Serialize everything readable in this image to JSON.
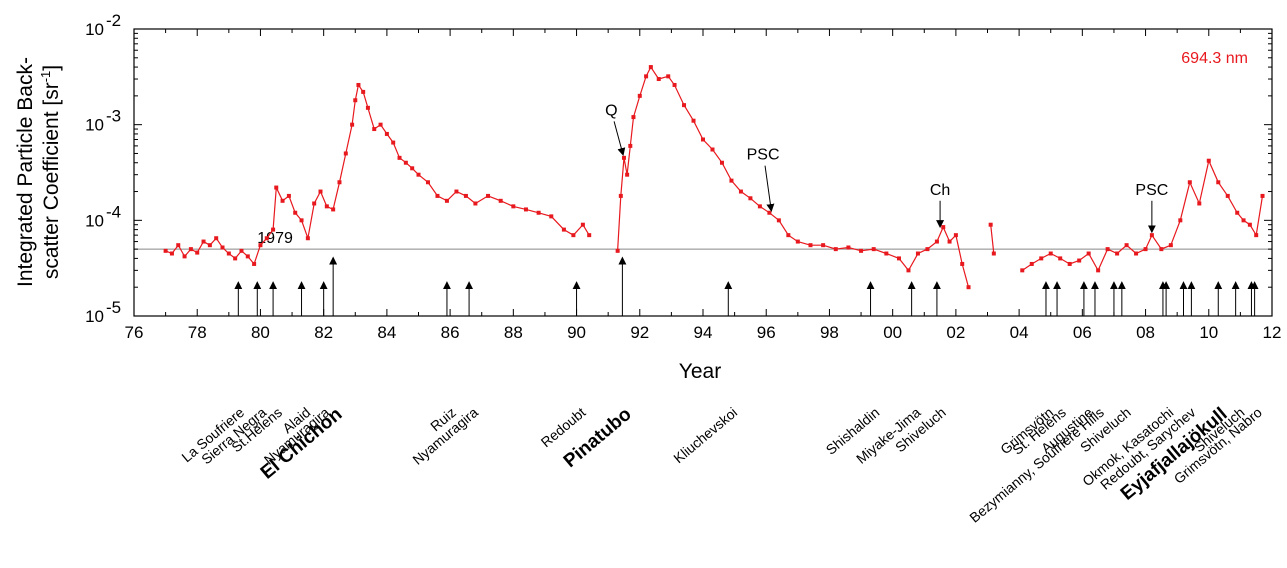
{
  "chart_data": {
    "type": "line",
    "ylabel_line1": "Integrated Particle Back-",
    "ylabel_line2": "scatter Coefficient [sr",
    "ylabel_sup": "-1",
    "ylabel_end": "]",
    "xlabel": "Year",
    "wavelength_label": "694.3 nm",
    "x_axis": {
      "min": 1976,
      "max": 2012,
      "ticks": [
        1976,
        1978,
        1980,
        1982,
        1984,
        1986,
        1988,
        1990,
        1992,
        1994,
        1996,
        1998,
        2000,
        2002,
        2004,
        2006,
        2008,
        2010,
        2012
      ],
      "tick_labels": [
        "76",
        "78",
        "80",
        "82",
        "84",
        "86",
        "88",
        "90",
        "92",
        "94",
        "96",
        "98",
        "00",
        "02",
        "04",
        "06",
        "08",
        "10",
        "12"
      ]
    },
    "y_axis": {
      "scale": "log",
      "min": 1e-05,
      "max": 0.01,
      "tick_base": "10",
      "tick_exponents": [
        "-5",
        "-4",
        "-3",
        "-2"
      ]
    },
    "reference_line": {
      "value": 5e-05,
      "label": "1979"
    },
    "colors": {
      "series": "#e8191e",
      "axis": "#000000",
      "wavelength": "#e8191e",
      "reference": "#888888"
    },
    "series": [
      {
        "points": [
          [
            1977.0,
            4.8e-05
          ],
          [
            1977.2,
            4.5e-05
          ],
          [
            1977.4,
            5.5e-05
          ],
          [
            1977.6,
            4.2e-05
          ],
          [
            1977.8,
            5e-05
          ],
          [
            1978.0,
            4.6e-05
          ],
          [
            1978.2,
            6e-05
          ],
          [
            1978.4,
            5.5e-05
          ],
          [
            1978.6,
            6.5e-05
          ],
          [
            1978.8,
            5.2e-05
          ],
          [
            1979.0,
            4.5e-05
          ],
          [
            1979.2,
            4e-05
          ],
          [
            1979.4,
            4.8e-05
          ],
          [
            1979.6,
            4.2e-05
          ],
          [
            1979.8,
            3.5e-05
          ],
          [
            1980.0,
            5.5e-05
          ],
          [
            1980.2,
            6.5e-05
          ],
          [
            1980.4,
            8e-05
          ],
          [
            1980.5,
            0.00022
          ],
          [
            1980.7,
            0.00016
          ],
          [
            1980.9,
            0.00018
          ],
          [
            1981.1,
            0.00012
          ],
          [
            1981.3,
            0.0001
          ],
          [
            1981.5,
            6.5e-05
          ],
          [
            1981.7,
            0.00015
          ],
          [
            1981.9,
            0.0002
          ],
          [
            1982.1,
            0.00014
          ],
          [
            1982.3,
            0.00013
          ],
          [
            1982.5,
            0.00025
          ],
          [
            1982.7,
            0.0005
          ],
          [
            1982.9,
            0.001
          ],
          [
            1983.0,
            0.0018
          ],
          [
            1983.1,
            0.0026
          ],
          [
            1983.25,
            0.0022
          ],
          [
            1983.4,
            0.0015
          ],
          [
            1983.6,
            0.0009
          ],
          [
            1983.8,
            0.001
          ],
          [
            1984.0,
            0.0008
          ],
          [
            1984.2,
            0.00065
          ],
          [
            1984.4,
            0.00045
          ],
          [
            1984.6,
            0.0004
          ],
          [
            1984.8,
            0.00035
          ],
          [
            1985.0,
            0.0003
          ],
          [
            1985.3,
            0.00025
          ],
          [
            1985.6,
            0.00018
          ],
          [
            1985.9,
            0.00016
          ],
          [
            1986.2,
            0.0002
          ],
          [
            1986.5,
            0.00018
          ],
          [
            1986.8,
            0.00015
          ],
          [
            1987.2,
            0.00018
          ],
          [
            1987.6,
            0.00016
          ],
          [
            1988.0,
            0.00014
          ],
          [
            1988.4,
            0.00013
          ],
          [
            1988.8,
            0.00012
          ],
          [
            1989.2,
            0.00011
          ],
          [
            1989.6,
            8e-05
          ],
          [
            1989.9,
            7e-05
          ],
          [
            1990.2,
            9e-05
          ],
          [
            1990.4,
            7e-05
          ],
          [
            1991.3,
            4.8e-05
          ],
          [
            1991.4,
            0.00018
          ],
          [
            1991.5,
            0.00045
          ],
          [
            1991.6,
            0.0003
          ],
          [
            1991.7,
            0.0006
          ],
          [
            1991.8,
            0.0012
          ],
          [
            1992.0,
            0.002
          ],
          [
            1992.2,
            0.0032
          ],
          [
            1992.35,
            0.004
          ],
          [
            1992.6,
            0.003
          ],
          [
            1992.9,
            0.0032
          ],
          [
            1993.1,
            0.0026
          ],
          [
            1993.4,
            0.0016
          ],
          [
            1993.7,
            0.0011
          ],
          [
            1994.0,
            0.0007
          ],
          [
            1994.3,
            0.00055
          ],
          [
            1994.6,
            0.0004
          ],
          [
            1994.9,
            0.00026
          ],
          [
            1995.2,
            0.0002
          ],
          [
            1995.5,
            0.00017
          ],
          [
            1995.8,
            0.00014
          ],
          [
            1996.1,
            0.00012
          ],
          [
            1996.4,
            0.0001
          ],
          [
            1996.7,
            7e-05
          ],
          [
            1997.0,
            6e-05
          ],
          [
            1997.4,
            5.5e-05
          ],
          [
            1997.8,
            5.5e-05
          ],
          [
            1998.2,
            5e-05
          ],
          [
            1998.6,
            5.2e-05
          ],
          [
            1999.0,
            4.8e-05
          ],
          [
            1999.4,
            5e-05
          ],
          [
            1999.8,
            4.5e-05
          ],
          [
            2000.2,
            4e-05
          ],
          [
            2000.5,
            3e-05
          ],
          [
            2000.8,
            4.5e-05
          ],
          [
            2001.1,
            5e-05
          ],
          [
            2001.4,
            6e-05
          ],
          [
            2001.6,
            8.5e-05
          ],
          [
            2001.8,
            6e-05
          ],
          [
            2002.0,
            7e-05
          ],
          [
            2002.2,
            3.5e-05
          ],
          [
            2002.4,
            2e-05
          ],
          [
            2003.1,
            9e-05
          ],
          [
            2003.2,
            4.5e-05
          ],
          [
            2004.1,
            3e-05
          ],
          [
            2004.4,
            3.5e-05
          ],
          [
            2004.7,
            4e-05
          ],
          [
            2005.0,
            4.5e-05
          ],
          [
            2005.3,
            4e-05
          ],
          [
            2005.6,
            3.5e-05
          ],
          [
            2005.9,
            3.8e-05
          ],
          [
            2006.2,
            4.5e-05
          ],
          [
            2006.5,
            3e-05
          ],
          [
            2006.8,
            5e-05
          ],
          [
            2007.1,
            4.5e-05
          ],
          [
            2007.4,
            5.5e-05
          ],
          [
            2007.7,
            4.5e-05
          ],
          [
            2008.0,
            5e-05
          ],
          [
            2008.2,
            7e-05
          ],
          [
            2008.5,
            5e-05
          ],
          [
            2008.8,
            5.5e-05
          ],
          [
            2009.1,
            0.0001
          ],
          [
            2009.4,
            0.00025
          ],
          [
            2009.7,
            0.00015
          ],
          [
            2010.0,
            0.00042
          ],
          [
            2010.3,
            0.00025
          ],
          [
            2010.6,
            0.00018
          ],
          [
            2010.9,
            0.00012
          ],
          [
            2011.1,
            0.0001
          ],
          [
            2011.3,
            9e-05
          ],
          [
            2011.5,
            7e-05
          ],
          [
            2011.7,
            0.00018
          ]
        ]
      }
    ],
    "eruption_years": [
      {
        "x": 1979.3,
        "tall": false
      },
      {
        "x": 1979.9,
        "tall": false
      },
      {
        "x": 1980.4,
        "tall": false
      },
      {
        "x": 1981.3,
        "tall": false
      },
      {
        "x": 1982.0,
        "tall": false
      },
      {
        "x": 1982.3,
        "tall": true
      },
      {
        "x": 1985.9,
        "tall": false
      },
      {
        "x": 1986.6,
        "tall": false
      },
      {
        "x": 1990.0,
        "tall": false
      },
      {
        "x": 1991.45,
        "tall": true
      },
      {
        "x": 1994.8,
        "tall": false
      },
      {
        "x": 1999.3,
        "tall": false
      },
      {
        "x": 2000.6,
        "tall": false
      },
      {
        "x": 2001.4,
        "tall": false
      },
      {
        "x": 2004.85,
        "tall": false
      },
      {
        "x": 2005.2,
        "tall": false
      },
      {
        "x": 2006.05,
        "tall": false
      },
      {
        "x": 2006.4,
        "tall": false
      },
      {
        "x": 2007.0,
        "tall": false
      },
      {
        "x": 2007.25,
        "tall": false
      },
      {
        "x": 2008.55,
        "tall": false
      },
      {
        "x": 2008.65,
        "tall": false
      },
      {
        "x": 2009.2,
        "tall": false
      },
      {
        "x": 2009.45,
        "tall": false
      },
      {
        "x": 2010.3,
        "tall": false
      },
      {
        "x": 2010.85,
        "tall": false
      },
      {
        "x": 2011.35,
        "tall": false
      },
      {
        "x": 2011.45,
        "tall": false
      }
    ],
    "annotations": [
      {
        "text": "Q",
        "label_x": 1991.1,
        "label_y": 0.00125,
        "tip_x": 1991.45,
        "tip_y": 0.00048
      },
      {
        "text": "PSC",
        "label_x": 1995.9,
        "label_y": 0.00043,
        "tip_x": 1996.15,
        "tip_y": 0.000125
      },
      {
        "text": "Ch",
        "label_x": 2001.5,
        "label_y": 0.000185,
        "tip_x": 2001.5,
        "tip_y": 8.5e-05
      },
      {
        "text": "PSC",
        "label_x": 2008.2,
        "label_y": 0.000185,
        "tip_x": 2008.2,
        "tip_y": 7.5e-05
      }
    ],
    "volcano_labels": [
      {
        "text": "La Soufriere",
        "x": 1979.2,
        "major": false
      },
      {
        "text": "Sierra Negra",
        "x": 1979.9,
        "major": false
      },
      {
        "text": "St.Helens",
        "x": 1980.4,
        "major": false
      },
      {
        "text": "Alaid",
        "x": 1981.3,
        "major": false
      },
      {
        "text": "Nyamuragira",
        "x": 1981.9,
        "major": false
      },
      {
        "text": "El Chichon",
        "x": 1982.3,
        "major": true
      },
      {
        "text": "Ruiz",
        "x": 1985.9,
        "major": false
      },
      {
        "text": "Nyamuragira",
        "x": 1986.6,
        "major": false
      },
      {
        "text": "Redoubt",
        "x": 1990.0,
        "major": false
      },
      {
        "text": "Pinatubo",
        "x": 1991.45,
        "major": true
      },
      {
        "text": "Kliuchevskoi",
        "x": 1994.8,
        "major": false
      },
      {
        "text": "Shishaldin",
        "x": 1999.3,
        "major": false
      },
      {
        "text": "Miyake-Jima",
        "x": 2000.6,
        "major": false
      },
      {
        "text": "Shiveluch",
        "x": 2001.4,
        "major": false
      },
      {
        "text": "Grimsvötn",
        "x": 2004.8,
        "major": false
      },
      {
        "text": "St. Helens",
        "x": 2005.2,
        "major": false
      },
      {
        "text": "Augustine",
        "x": 2006.05,
        "major": false
      },
      {
        "text": "Bezymianny, Soufriere Hills",
        "x": 2006.4,
        "major": false
      },
      {
        "text": "Shiveluch",
        "x": 2007.25,
        "major": false
      },
      {
        "text": "Okmok, Kasatochi",
        "x": 2008.6,
        "major": false
      },
      {
        "text": "Redoubt, Sarychev",
        "x": 2009.3,
        "major": false
      },
      {
        "text": "Eyjafjallajökull",
        "x": 2010.3,
        "major": true
      },
      {
        "text": "Shiveluch",
        "x": 2010.85,
        "major": false
      },
      {
        "text": "Grimsvötn, Nabro",
        "x": 2011.4,
        "major": false
      }
    ]
  }
}
